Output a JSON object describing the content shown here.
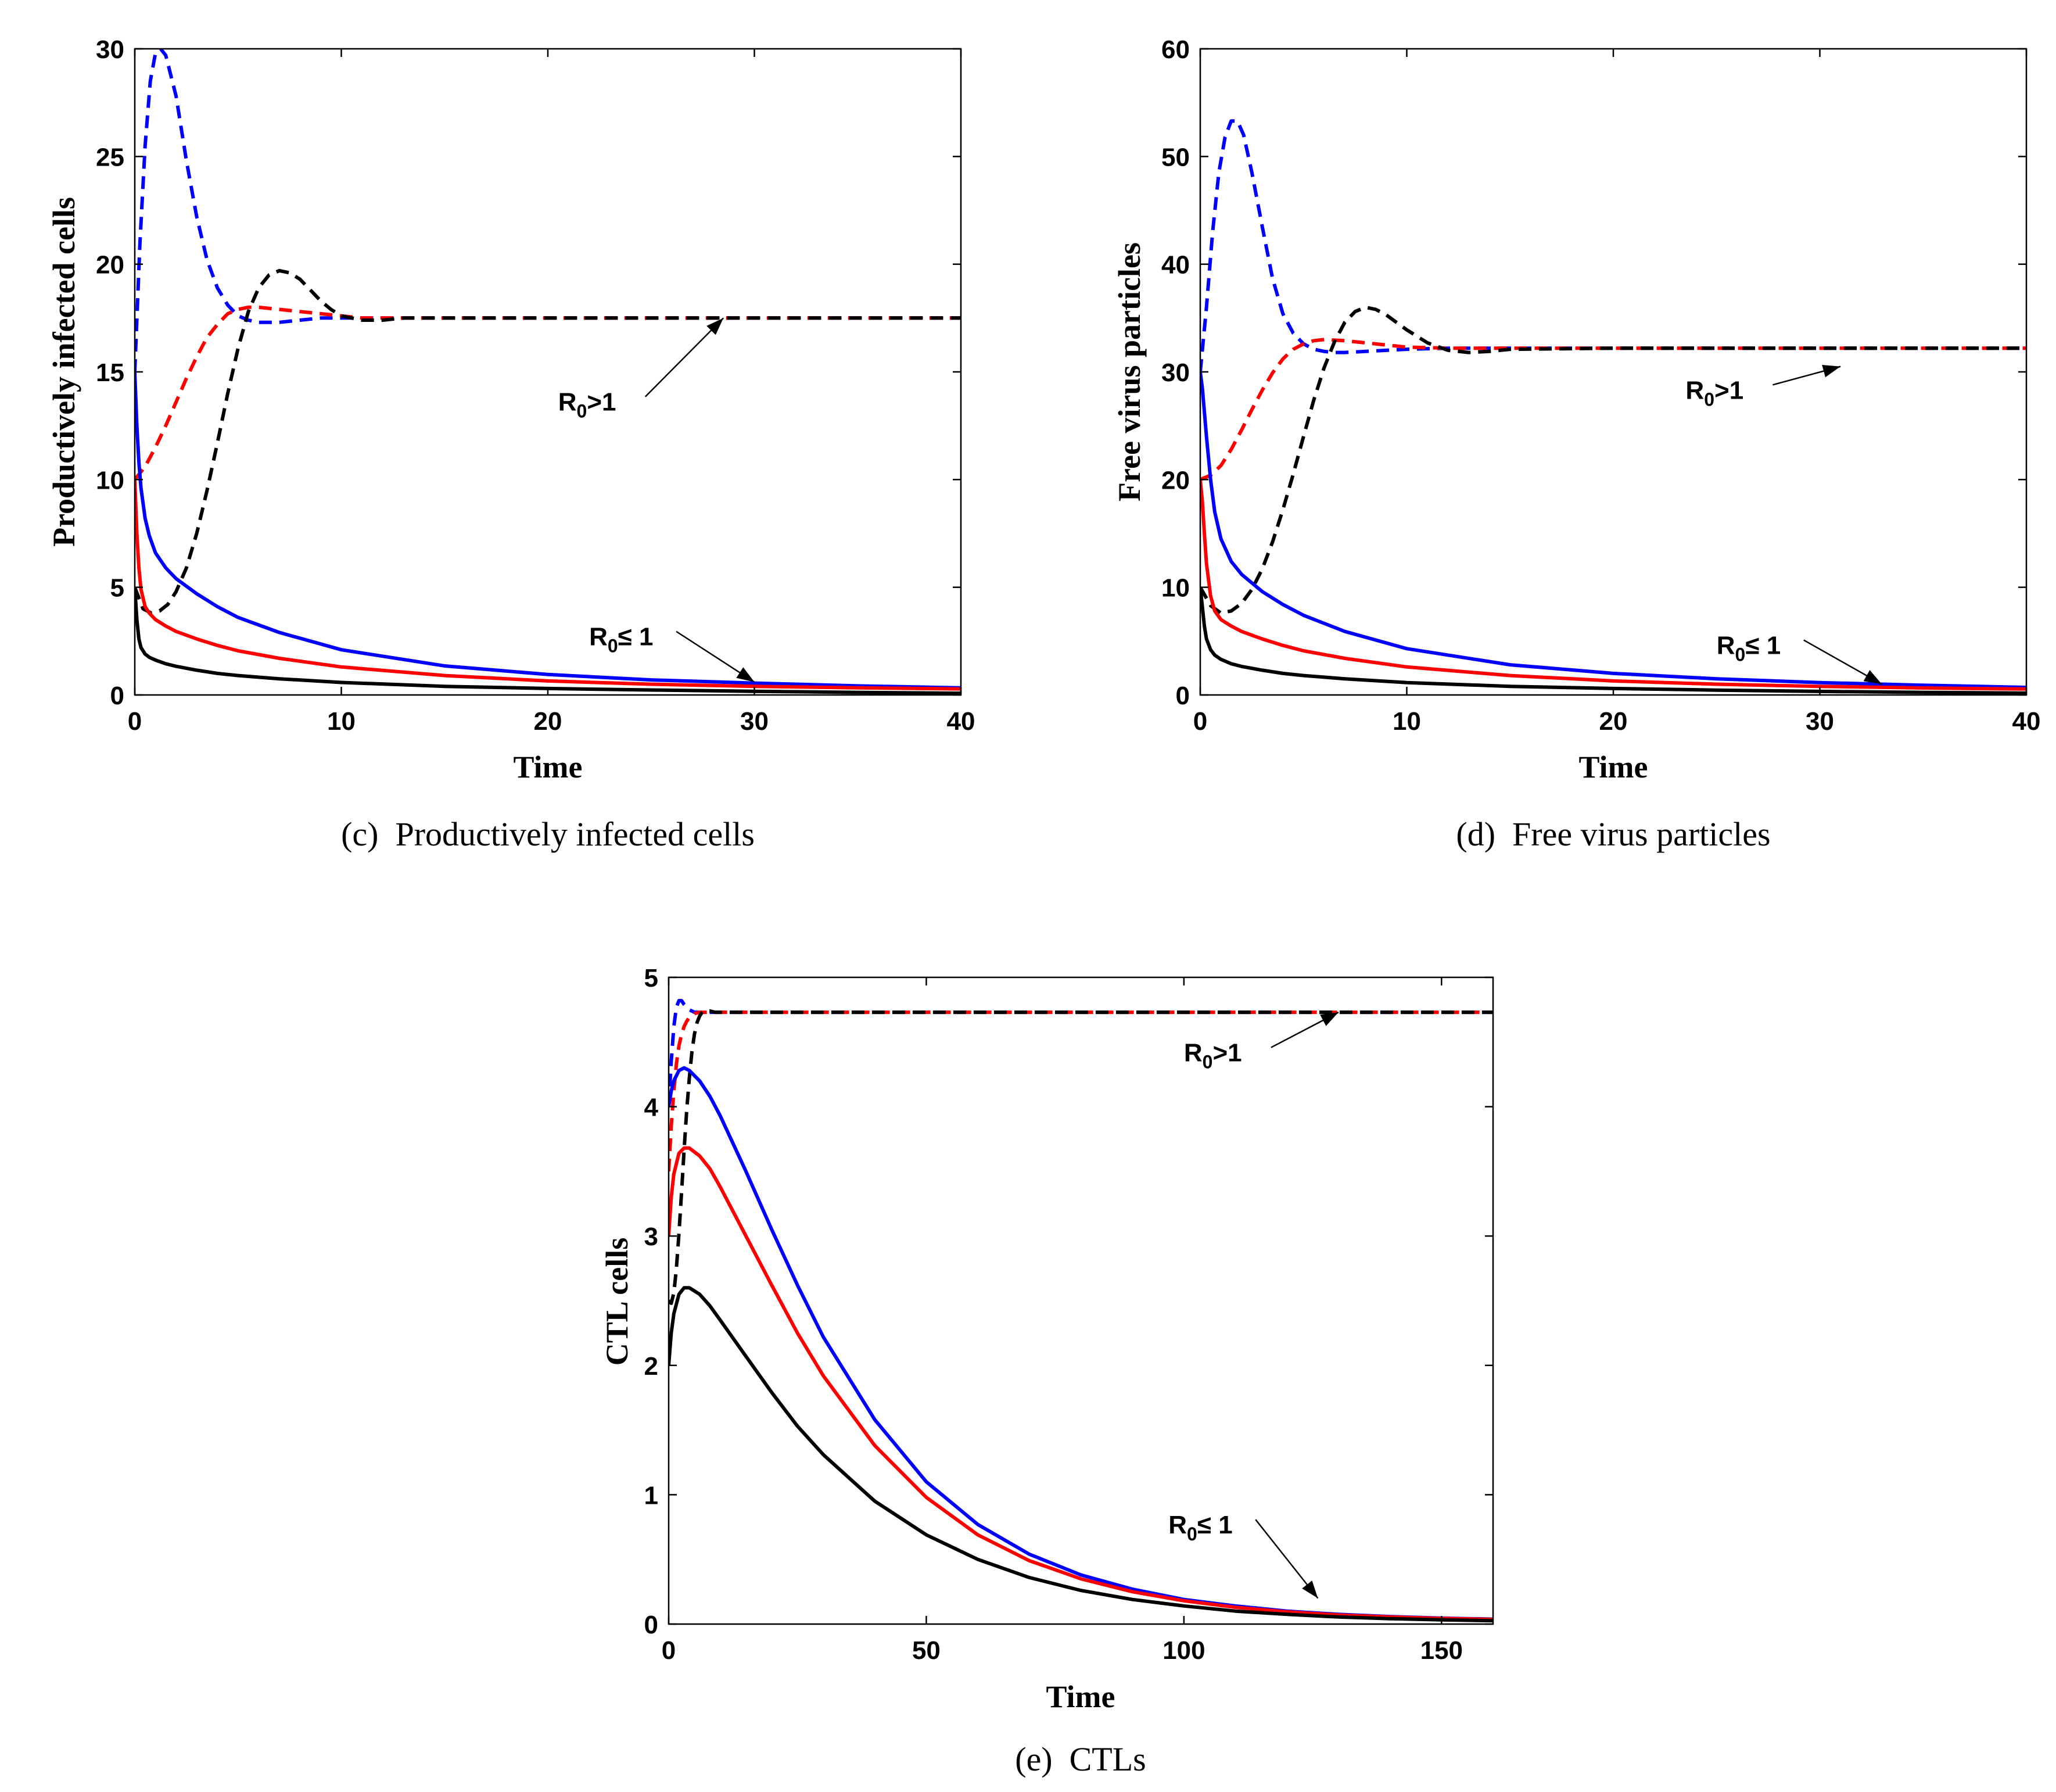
{
  "chart_data": [
    {
      "type": "line",
      "panel": "c",
      "caption": "(c)  Productively infected cells",
      "xlabel": "Time",
      "ylabel": "Productively infected cells",
      "xlim": [
        0,
        40
      ],
      "ylim": [
        0,
        30
      ],
      "xticks": [
        0,
        10,
        20,
        30,
        40
      ],
      "yticks": [
        0,
        5,
        10,
        15,
        20,
        25,
        30
      ],
      "grid": false,
      "annotations": [
        {
          "text_main": "R",
          "text_sub": "0",
          "text_rest": ">1",
          "arrow_to": [
            28.5,
            17.5
          ],
          "text_at": [
            20.5,
            13.2
          ]
        },
        {
          "text_main": "R",
          "text_sub": "0",
          "text_rest": "≤ 1",
          "arrow_to": [
            30,
            0.6
          ],
          "text_at": [
            22,
            2.3
          ]
        }
      ],
      "series": [
        {
          "color": "#0000ff",
          "style": "dashed",
          "x": [
            0,
            0.25,
            0.5,
            0.75,
            1,
            1.25,
            1.5,
            2,
            2.5,
            3,
            3.5,
            4,
            4.5,
            5,
            5.5,
            6,
            7,
            8,
            9,
            10,
            12,
            15,
            20,
            40
          ],
          "y": [
            15,
            21,
            25.5,
            28.5,
            29.8,
            30,
            29.7,
            27.8,
            24.8,
            22.2,
            20.2,
            18.9,
            18.1,
            17.6,
            17.4,
            17.3,
            17.3,
            17.4,
            17.5,
            17.5,
            17.5,
            17.5,
            17.5,
            17.5
          ]
        },
        {
          "color": "#ff0000",
          "style": "dashed",
          "x": [
            0,
            0.5,
            1,
            1.5,
            2,
            2.5,
            3,
            3.5,
            4,
            4.5,
            5,
            5.5,
            6,
            7,
            8,
            9,
            10,
            11,
            12,
            15,
            20,
            40
          ],
          "y": [
            10,
            10.6,
            11.5,
            12.5,
            13.6,
            14.7,
            15.7,
            16.6,
            17.2,
            17.7,
            17.9,
            18.0,
            18.0,
            17.9,
            17.8,
            17.7,
            17.6,
            17.5,
            17.5,
            17.5,
            17.5,
            17.5
          ]
        },
        {
          "color": "#000000",
          "style": "dashed",
          "x": [
            0,
            0.4,
            0.8,
            1.2,
            1.6,
            2,
            2.5,
            3,
            3.5,
            4,
            4.5,
            5,
            5.5,
            6,
            6.5,
            7,
            7.5,
            8,
            8.5,
            9,
            9.5,
            10,
            11,
            12,
            13,
            15,
            20,
            40
          ],
          "y": [
            5,
            4.0,
            3.8,
            3.9,
            4.2,
            4.8,
            5.9,
            7.5,
            9.5,
            11.7,
            14.0,
            16.1,
            17.8,
            18.9,
            19.5,
            19.7,
            19.6,
            19.3,
            18.8,
            18.3,
            17.9,
            17.6,
            17.4,
            17.4,
            17.5,
            17.5,
            17.5,
            17.5
          ]
        },
        {
          "color": "#0000ff",
          "style": "solid",
          "x": [
            0,
            0.1,
            0.2,
            0.3,
            0.5,
            0.7,
            1,
            1.5,
            2,
            3,
            4,
            5,
            7,
            10,
            15,
            20,
            25,
            30,
            35,
            40
          ],
          "y": [
            15,
            12.5,
            10.8,
            9.6,
            8.2,
            7.4,
            6.6,
            5.9,
            5.4,
            4.7,
            4.1,
            3.6,
            2.9,
            2.1,
            1.35,
            0.95,
            0.7,
            0.55,
            0.42,
            0.33
          ]
        },
        {
          "color": "#ff0000",
          "style": "solid",
          "x": [
            0,
            0.1,
            0.2,
            0.3,
            0.5,
            0.7,
            1,
            1.5,
            2,
            3,
            4,
            5,
            7,
            10,
            15,
            20,
            25,
            30,
            35,
            40
          ],
          "y": [
            10,
            7.5,
            5.9,
            4.9,
            4.1,
            3.8,
            3.5,
            3.2,
            2.95,
            2.6,
            2.3,
            2.05,
            1.7,
            1.3,
            0.9,
            0.65,
            0.5,
            0.4,
            0.33,
            0.28
          ]
        },
        {
          "color": "#000000",
          "style": "solid",
          "x": [
            0,
            0.1,
            0.2,
            0.3,
            0.5,
            0.7,
            1,
            1.5,
            2,
            3,
            4,
            5,
            7,
            10,
            15,
            20,
            25,
            30,
            35,
            40
          ],
          "y": [
            5,
            3.5,
            2.6,
            2.2,
            1.9,
            1.75,
            1.62,
            1.45,
            1.33,
            1.15,
            1.0,
            0.9,
            0.75,
            0.58,
            0.4,
            0.3,
            0.23,
            0.17,
            0.12,
            0.08
          ]
        }
      ]
    },
    {
      "type": "line",
      "panel": "d",
      "caption": "(d)  Free virus particles",
      "xlabel": "Time",
      "ylabel": "Free virus particles",
      "xlim": [
        0,
        40
      ],
      "ylim": [
        0,
        60
      ],
      "xticks": [
        0,
        10,
        20,
        30,
        40
      ],
      "yticks": [
        0,
        10,
        20,
        30,
        40,
        50,
        60
      ],
      "grid": false,
      "annotations": [
        {
          "text_main": "R",
          "text_sub": "0",
          "text_rest": ">1",
          "arrow_to": [
            31,
            30.5
          ],
          "text_at": [
            23.5,
            27.5
          ]
        },
        {
          "text_main": "R",
          "text_sub": "0",
          "text_rest": "≤ 1",
          "arrow_to": [
            33,
            1.0
          ],
          "text_at": [
            25,
            3.8
          ]
        }
      ],
      "series": [
        {
          "color": "#0000ff",
          "style": "dashed",
          "x": [
            0,
            0.3,
            0.6,
            0.9,
            1.2,
            1.5,
            1.8,
            2.1,
            2.5,
            3,
            3.5,
            4,
            4.5,
            5,
            5.5,
            6,
            6.5,
            7,
            8,
            9,
            10,
            12,
            15,
            20,
            40
          ],
          "y": [
            30,
            36,
            43,
            48.5,
            51.8,
            53.3,
            53.3,
            52,
            48.5,
            43.5,
            38.7,
            35.4,
            33.6,
            32.6,
            32.1,
            31.9,
            31.8,
            31.8,
            31.9,
            32.0,
            32.1,
            32.2,
            32.2,
            32.2,
            32.2
          ]
        },
        {
          "color": "#ff0000",
          "style": "dashed",
          "x": [
            0,
            0.5,
            1,
            1.5,
            2,
            2.5,
            3,
            3.5,
            4,
            4.5,
            5,
            5.5,
            6,
            7,
            8,
            9,
            10,
            12,
            15,
            20,
            40
          ],
          "y": [
            20,
            20.4,
            21.3,
            22.8,
            24.6,
            26.5,
            28.3,
            29.9,
            31.2,
            32.1,
            32.6,
            32.9,
            33.0,
            32.9,
            32.7,
            32.5,
            32.3,
            32.2,
            32.2,
            32.2,
            32.2
          ]
        },
        {
          "color": "#000000",
          "style": "dashed",
          "x": [
            0,
            0.5,
            1,
            1.5,
            2,
            2.5,
            3,
            3.5,
            4,
            4.5,
            5,
            5.5,
            6,
            6.5,
            7,
            7.5,
            8,
            8.5,
            9,
            10,
            11,
            12,
            13,
            14,
            15,
            20,
            40
          ],
          "y": [
            10,
            8.3,
            7.6,
            7.8,
            8.5,
            9.8,
            11.7,
            14.2,
            17.2,
            20.5,
            24.0,
            27.4,
            30.4,
            32.8,
            34.6,
            35.6,
            36.0,
            35.8,
            35.3,
            33.9,
            32.7,
            32.0,
            31.8,
            31.9,
            32.1,
            32.2,
            32.2
          ]
        },
        {
          "color": "#0000ff",
          "style": "solid",
          "x": [
            0,
            0.1,
            0.2,
            0.3,
            0.5,
            0.7,
            1,
            1.5,
            2,
            3,
            4,
            5,
            7,
            10,
            15,
            20,
            25,
            30,
            35,
            40
          ],
          "y": [
            30,
            28.5,
            26.3,
            24.0,
            20.0,
            17.0,
            14.5,
            12.4,
            11.2,
            9.6,
            8.4,
            7.4,
            5.9,
            4.3,
            2.8,
            2.0,
            1.5,
            1.15,
            0.9,
            0.7
          ]
        },
        {
          "color": "#ff0000",
          "style": "solid",
          "x": [
            0,
            0.1,
            0.2,
            0.3,
            0.5,
            0.7,
            1,
            1.5,
            2,
            3,
            4,
            5,
            7,
            10,
            15,
            20,
            25,
            30,
            35,
            40
          ],
          "y": [
            20,
            18.0,
            15.0,
            12.2,
            9.2,
            7.8,
            7.0,
            6.4,
            5.9,
            5.2,
            4.6,
            4.1,
            3.4,
            2.6,
            1.8,
            1.3,
            1.0,
            0.8,
            0.65,
            0.55
          ]
        },
        {
          "color": "#000000",
          "style": "solid",
          "x": [
            0,
            0.1,
            0.2,
            0.3,
            0.5,
            0.7,
            1,
            1.5,
            2,
            3,
            4,
            5,
            7,
            10,
            15,
            20,
            25,
            30,
            35,
            40
          ],
          "y": [
            10,
            8.2,
            6.4,
            5.2,
            4.2,
            3.7,
            3.3,
            2.9,
            2.65,
            2.3,
            2.0,
            1.8,
            1.5,
            1.15,
            0.8,
            0.6,
            0.45,
            0.33,
            0.24,
            0.17
          ]
        }
      ]
    },
    {
      "type": "line",
      "panel": "e",
      "caption": "(e)  CTLs",
      "xlabel": "Time",
      "ylabel": "CTL cells",
      "xlim": [
        0,
        160
      ],
      "ylim": [
        0,
        5
      ],
      "xticks": [
        0,
        50,
        100,
        150
      ],
      "yticks": [
        0,
        1,
        2,
        3,
        4,
        5
      ],
      "grid": false,
      "annotations": [
        {
          "text_main": "R",
          "text_sub": "0",
          "text_rest": ">1",
          "arrow_to": [
            130,
            4.73
          ],
          "text_at": [
            100,
            4.35
          ]
        },
        {
          "text_main": "R",
          "text_sub": "0",
          "text_rest": "≤ 1",
          "arrow_to": [
            126,
            0.2
          ],
          "text_at": [
            97,
            0.7
          ]
        }
      ],
      "series": [
        {
          "color": "#0000ff",
          "style": "dashed",
          "x": [
            0,
            0.5,
            1,
            1.5,
            2,
            2.5,
            3,
            3.5,
            4,
            5,
            6,
            8,
            10,
            15,
            20,
            40,
            160
          ],
          "y": [
            4,
            4.35,
            4.62,
            4.77,
            4.82,
            4.82,
            4.79,
            4.77,
            4.75,
            4.73,
            4.73,
            4.73,
            4.73,
            4.73,
            4.73,
            4.73,
            4.73
          ]
        },
        {
          "color": "#ff0000",
          "style": "dashed",
          "x": [
            0,
            0.5,
            1,
            1.5,
            2,
            2.5,
            3,
            3.5,
            4,
            5,
            6,
            8,
            10,
            15,
            20,
            40,
            160
          ],
          "y": [
            3.5,
            3.85,
            4.12,
            4.33,
            4.47,
            4.56,
            4.62,
            4.66,
            4.69,
            4.72,
            4.73,
            4.73,
            4.73,
            4.73,
            4.73,
            4.73,
            4.73
          ]
        },
        {
          "color": "#000000",
          "style": "dashed",
          "x": [
            0,
            0.5,
            1,
            1.5,
            2,
            2.5,
            3,
            3.5,
            4,
            4.5,
            5,
            5.5,
            6,
            6.5,
            7,
            8,
            9,
            10,
            12,
            15,
            20,
            40,
            160
          ],
          "y": [
            2.5,
            2.48,
            2.56,
            2.75,
            3.02,
            3.34,
            3.67,
            3.97,
            4.22,
            4.42,
            4.56,
            4.65,
            4.7,
            4.73,
            4.74,
            4.74,
            4.73,
            4.73,
            4.73,
            4.73,
            4.73,
            4.73,
            4.73
          ]
        },
        {
          "color": "#0000ff",
          "style": "solid",
          "x": [
            0,
            0.5,
            1,
            2,
            3,
            4,
            6,
            8,
            10,
            15,
            20,
            25,
            30,
            40,
            50,
            60,
            70,
            80,
            90,
            100,
            110,
            120,
            130,
            140,
            150,
            160
          ],
          "y": [
            4,
            4.12,
            4.2,
            4.28,
            4.3,
            4.28,
            4.2,
            4.08,
            3.93,
            3.5,
            3.05,
            2.62,
            2.22,
            1.58,
            1.1,
            0.77,
            0.54,
            0.38,
            0.27,
            0.19,
            0.14,
            0.1,
            0.075,
            0.058,
            0.046,
            0.038
          ]
        },
        {
          "color": "#ff0000",
          "style": "solid",
          "x": [
            0,
            0.5,
            1,
            2,
            3,
            4,
            6,
            8,
            10,
            15,
            20,
            25,
            30,
            40,
            50,
            60,
            70,
            80,
            90,
            100,
            110,
            120,
            130,
            140,
            150,
            160
          ],
          "y": [
            3,
            3.3,
            3.48,
            3.64,
            3.68,
            3.68,
            3.62,
            3.52,
            3.38,
            3.0,
            2.62,
            2.25,
            1.92,
            1.38,
            0.98,
            0.69,
            0.49,
            0.35,
            0.25,
            0.18,
            0.13,
            0.095,
            0.07,
            0.055,
            0.044,
            0.036
          ]
        },
        {
          "color": "#000000",
          "style": "solid",
          "x": [
            0,
            0.5,
            1,
            2,
            3,
            4,
            6,
            8,
            10,
            15,
            20,
            25,
            30,
            40,
            50,
            60,
            70,
            80,
            90,
            100,
            110,
            120,
            130,
            140,
            150,
            160
          ],
          "y": [
            2,
            2.25,
            2.4,
            2.55,
            2.6,
            2.6,
            2.55,
            2.46,
            2.35,
            2.07,
            1.79,
            1.53,
            1.31,
            0.95,
            0.69,
            0.5,
            0.36,
            0.26,
            0.19,
            0.14,
            0.1,
            0.075,
            0.055,
            0.042,
            0.033,
            0.026
          ]
        }
      ]
    }
  ]
}
